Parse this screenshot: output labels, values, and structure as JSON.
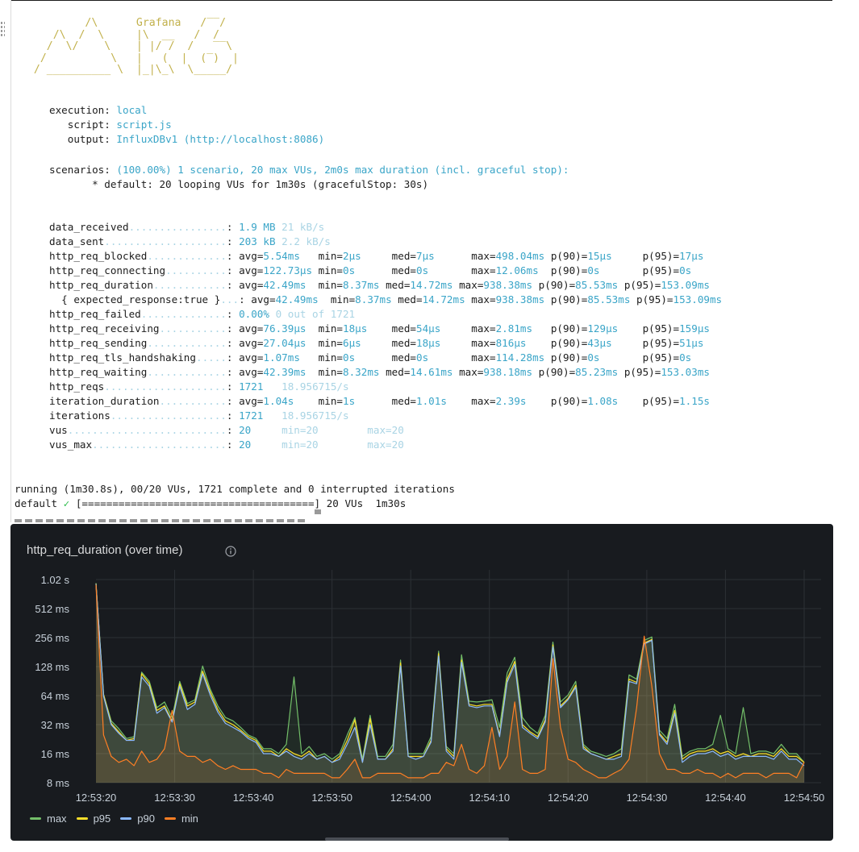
{
  "terminal": {
    "logo_ascii": "          /\\      Grafana   /‾‾/\n     /\\  /  \\     |\\  __   /  /\n    /  \\/    \\    | |/ /  /   ‾‾\\\n   /          \\   |   (  |  (‾)  |\n  / __________ \\  |_|\\_\\  \\_____/",
    "options": [
      {
        "label": "execution: ",
        "value": "local"
      },
      {
        "label": "   script: ",
        "value": "script.js"
      },
      {
        "label": "   output: ",
        "value": "InfluxDBv1 (http://localhost:8086)"
      }
    ],
    "scenarios_label": "scenarios: ",
    "scenarios_value": "(100.00%) 1 scenario, 20 max VUs, 2m0s max duration (incl. graceful stop):",
    "scenario_detail": "       * default: 20 looping VUs for 1m30s (gracefulStop: 30s)",
    "metrics": [
      {
        "name": "data_received",
        "values": [
          [
            "1.9 MB",
            "c"
          ],
          [
            " 21 kB/s",
            "f"
          ]
        ]
      },
      {
        "name": "data_sent",
        "values": [
          [
            "203 kB",
            "c"
          ],
          [
            " 2.2 kB/s",
            "f"
          ]
        ]
      },
      {
        "name": "http_req_blocked",
        "values": [
          [
            "avg=",
            ""
          ],
          [
            "5.54ms",
            "c"
          ],
          [
            "   min=",
            ""
          ],
          [
            "2µs",
            "c"
          ],
          [
            "     med=",
            ""
          ],
          [
            "7µs",
            "c"
          ],
          [
            "      max=",
            ""
          ],
          [
            "498.04ms",
            "c"
          ],
          [
            " p(90)=",
            ""
          ],
          [
            "15µs",
            "c"
          ],
          [
            "     p(95)=",
            ""
          ],
          [
            "17µs",
            "c"
          ]
        ]
      },
      {
        "name": "http_req_connecting",
        "values": [
          [
            "avg=",
            ""
          ],
          [
            "122.73µs",
            "c"
          ],
          [
            " min=",
            ""
          ],
          [
            "0s",
            "c"
          ],
          [
            "      med=",
            ""
          ],
          [
            "0s",
            "c"
          ],
          [
            "       max=",
            ""
          ],
          [
            "12.06ms",
            "c"
          ],
          [
            "  p(90)=",
            ""
          ],
          [
            "0s",
            "c"
          ],
          [
            "       p(95)=",
            ""
          ],
          [
            "0s",
            "c"
          ]
        ]
      },
      {
        "name": "http_req_duration",
        "values": [
          [
            "avg=",
            ""
          ],
          [
            "42.49ms",
            "c"
          ],
          [
            "  min=",
            ""
          ],
          [
            "8.37ms",
            "c"
          ],
          [
            " med=",
            ""
          ],
          [
            "14.72ms",
            "c"
          ],
          [
            " max=",
            ""
          ],
          [
            "938.38ms",
            "c"
          ],
          [
            " p(90)=",
            ""
          ],
          [
            "85.53ms",
            "c"
          ],
          [
            " p(95)=",
            ""
          ],
          [
            "153.09ms",
            "c"
          ]
        ]
      },
      {
        "name": "  { expected_response:true }",
        "values": [
          [
            "avg=",
            ""
          ],
          [
            "42.49ms",
            "c"
          ],
          [
            "  min=",
            ""
          ],
          [
            "8.37ms",
            "c"
          ],
          [
            " med=",
            ""
          ],
          [
            "14.72ms",
            "c"
          ],
          [
            " max=",
            ""
          ],
          [
            "938.38ms",
            "c"
          ],
          [
            " p(90)=",
            ""
          ],
          [
            "85.53ms",
            "c"
          ],
          [
            " p(95)=",
            ""
          ],
          [
            "153.09ms",
            "c"
          ]
        ]
      },
      {
        "name": "http_req_failed",
        "values": [
          [
            "0.00%",
            "c"
          ],
          [
            " 0 out of 1721",
            "f"
          ]
        ]
      },
      {
        "name": "http_req_receiving",
        "values": [
          [
            "avg=",
            ""
          ],
          [
            "76.39µs",
            "c"
          ],
          [
            "  min=",
            ""
          ],
          [
            "18µs",
            "c"
          ],
          [
            "    med=",
            ""
          ],
          [
            "54µs",
            "c"
          ],
          [
            "     max=",
            ""
          ],
          [
            "2.81ms",
            "c"
          ],
          [
            "   p(90)=",
            ""
          ],
          [
            "129µs",
            "c"
          ],
          [
            "    p(95)=",
            ""
          ],
          [
            "159µs",
            "c"
          ]
        ]
      },
      {
        "name": "http_req_sending",
        "values": [
          [
            "avg=",
            ""
          ],
          [
            "27.04µs",
            "c"
          ],
          [
            "  min=",
            ""
          ],
          [
            "6µs",
            "c"
          ],
          [
            "     med=",
            ""
          ],
          [
            "18µs",
            "c"
          ],
          [
            "     max=",
            ""
          ],
          [
            "816µs",
            "c"
          ],
          [
            "    p(90)=",
            ""
          ],
          [
            "43µs",
            "c"
          ],
          [
            "     p(95)=",
            ""
          ],
          [
            "51µs",
            "c"
          ]
        ]
      },
      {
        "name": "http_req_tls_handshaking",
        "values": [
          [
            "avg=",
            ""
          ],
          [
            "1.07ms",
            "c"
          ],
          [
            "   min=",
            ""
          ],
          [
            "0s",
            "c"
          ],
          [
            "      med=",
            ""
          ],
          [
            "0s",
            "c"
          ],
          [
            "       max=",
            ""
          ],
          [
            "114.28ms",
            "c"
          ],
          [
            " p(90)=",
            ""
          ],
          [
            "0s",
            "c"
          ],
          [
            "       p(95)=",
            ""
          ],
          [
            "0s",
            "c"
          ]
        ]
      },
      {
        "name": "http_req_waiting",
        "values": [
          [
            "avg=",
            ""
          ],
          [
            "42.39ms",
            "c"
          ],
          [
            "  min=",
            ""
          ],
          [
            "8.32ms",
            "c"
          ],
          [
            " med=",
            ""
          ],
          [
            "14.61ms",
            "c"
          ],
          [
            " max=",
            ""
          ],
          [
            "938.18ms",
            "c"
          ],
          [
            " p(90)=",
            ""
          ],
          [
            "85.23ms",
            "c"
          ],
          [
            " p(95)=",
            ""
          ],
          [
            "153.03ms",
            "c"
          ]
        ]
      },
      {
        "name": "http_reqs",
        "values": [
          [
            "1721",
            "c"
          ],
          [
            "   18.956715/s",
            "f"
          ]
        ]
      },
      {
        "name": "iteration_duration",
        "values": [
          [
            "avg=",
            ""
          ],
          [
            "1.04s",
            "c"
          ],
          [
            "    min=",
            ""
          ],
          [
            "1s",
            "c"
          ],
          [
            "      med=",
            ""
          ],
          [
            "1.01s",
            "c"
          ],
          [
            "    max=",
            ""
          ],
          [
            "2.39s",
            "c"
          ],
          [
            "    p(90)=",
            ""
          ],
          [
            "1.08s",
            "c"
          ],
          [
            "    p(95)=",
            ""
          ],
          [
            "1.15s",
            "c"
          ]
        ]
      },
      {
        "name": "iterations",
        "values": [
          [
            "1721",
            "c"
          ],
          [
            "   18.956715/s",
            "f"
          ]
        ]
      },
      {
        "name": "vus",
        "values": [
          [
            "20",
            "c"
          ],
          [
            "     min=20",
            "f"
          ],
          [
            "        max=20",
            "f"
          ]
        ]
      },
      {
        "name": "vus_max",
        "values": [
          [
            "20",
            "c"
          ],
          [
            "     min=20",
            "f"
          ],
          [
            "        max=20",
            "f"
          ]
        ]
      }
    ],
    "running_line": "running (1m30.8s), 00/20 VUs, 1721 complete and 0 interrupted iterations",
    "progress_prefix": "default ",
    "progress_check": "✓",
    "progress_bar": " [======================================]",
    "progress_suffix": " 20 VUs  1m30s"
  },
  "panel": {
    "title": "http_req_duration (over time)",
    "info_icon": "info-circle-icon",
    "background": "#181b1f"
  },
  "chart_data": {
    "type": "area",
    "title": "http_req_duration (over time)",
    "y_scale": "log2",
    "y_ticks": [
      "1.02 s",
      "512 ms",
      "256 ms",
      "128 ms",
      "64 ms",
      "32 ms",
      "16 ms",
      "8 ms"
    ],
    "y_tick_values_ms": [
      1024,
      512,
      256,
      128,
      64,
      32,
      16,
      8
    ],
    "ylim_ms": [
      8,
      1024
    ],
    "x_ticks": [
      "12:53:20",
      "12:53:30",
      "12:53:40",
      "12:53:50",
      "12:54:00",
      "12:54:10",
      "12:54:20",
      "12:54:30",
      "12:54:40",
      "12:54:50"
    ],
    "x_start": "12:53:20",
    "x_end": "12:54:50",
    "grid": true,
    "legend_position": "bottom-left",
    "series": [
      {
        "name": "max",
        "color": "#73bf69",
        "values": [
          940,
          66,
          35,
          29,
          23,
          24,
          112,
          90,
          48,
          55,
          38,
          90,
          53,
          58,
          130,
          75,
          50,
          38,
          35,
          30,
          25,
          23,
          18,
          18,
          16,
          20,
          100,
          16,
          19,
          15,
          16,
          14,
          16,
          25,
          38,
          14,
          40,
          15,
          15,
          20,
          150,
          16,
          16,
          16,
          24,
          185,
          19,
          16,
          170,
          56,
          55,
          56,
          58,
          30,
          110,
          160,
          38,
          30,
          26,
          40,
          230,
          55,
          65,
          90,
          20,
          17,
          16,
          15,
          16,
          18,
          105,
          95,
          240,
          260,
          28,
          23,
          52,
          15,
          17,
          18,
          18,
          20,
          40,
          18,
          16,
          48,
          16,
          17,
          17,
          16,
          20,
          16,
          16,
          13
        ]
      },
      {
        "name": "p95",
        "color": "#fade2a",
        "values": [
          930,
          66,
          33,
          27,
          22,
          23,
          108,
          85,
          45,
          50,
          35,
          85,
          50,
          55,
          115,
          70,
          46,
          35,
          32,
          28,
          24,
          22,
          17,
          17,
          15,
          18,
          16,
          15,
          17,
          14,
          15,
          13,
          15,
          22,
          36,
          13,
          37,
          14,
          14,
          18,
          140,
          15,
          15,
          15,
          22,
          175,
          18,
          15,
          150,
          52,
          50,
          52,
          52,
          25,
          95,
          145,
          32,
          27,
          24,
          36,
          215,
          50,
          60,
          82,
          19,
          16,
          15,
          14,
          15,
          16,
          95,
          88,
          225,
          245,
          26,
          21,
          45,
          14,
          16,
          17,
          17,
          18,
          16,
          17,
          15,
          16,
          15,
          16,
          16,
          15,
          18,
          15,
          15,
          13
        ]
      },
      {
        "name": "p90",
        "color": "#8ab8ff",
        "values": [
          920,
          63,
          32,
          26,
          22,
          22,
          100,
          80,
          42,
          48,
          34,
          80,
          46,
          52,
          108,
          65,
          43,
          33,
          30,
          27,
          23,
          21,
          16,
          16,
          15,
          17,
          15,
          14,
          16,
          14,
          15,
          13,
          14,
          20,
          30,
          13,
          32,
          14,
          14,
          17,
          130,
          15,
          14,
          15,
          21,
          165,
          17,
          14,
          142,
          50,
          48,
          50,
          50,
          24,
          88,
          135,
          30,
          26,
          23,
          34,
          205,
          48,
          58,
          78,
          18,
          16,
          15,
          14,
          14,
          15,
          90,
          85,
          220,
          240,
          25,
          20,
          42,
          13,
          15,
          16,
          16,
          17,
          15,
          16,
          14,
          15,
          15,
          15,
          15,
          14,
          17,
          14,
          14,
          12
        ]
      },
      {
        "name": "min",
        "color": "#ff7f24",
        "values": [
          900,
          25,
          15,
          13,
          14,
          12,
          17,
          13,
          14,
          18,
          45,
          17,
          15,
          15,
          13,
          14,
          12,
          11,
          12,
          11,
          11,
          11,
          10,
          10,
          9,
          11,
          10,
          10,
          10,
          10,
          10,
          9,
          9,
          11,
          14,
          9,
          9,
          10,
          10,
          10,
          10,
          9,
          9,
          9,
          10,
          10,
          13,
          12,
          20,
          11,
          10,
          12,
          30,
          11,
          15,
          55,
          11,
          10,
          10,
          11,
          155,
          30,
          14,
          13,
          11,
          10,
          9,
          9,
          10,
          11,
          14,
          48,
          265,
          80,
          16,
          11,
          11,
          10,
          10,
          11,
          10,
          10,
          9,
          10,
          9,
          10,
          10,
          10,
          9,
          10,
          10,
          10,
          9,
          13
        ]
      }
    ]
  }
}
